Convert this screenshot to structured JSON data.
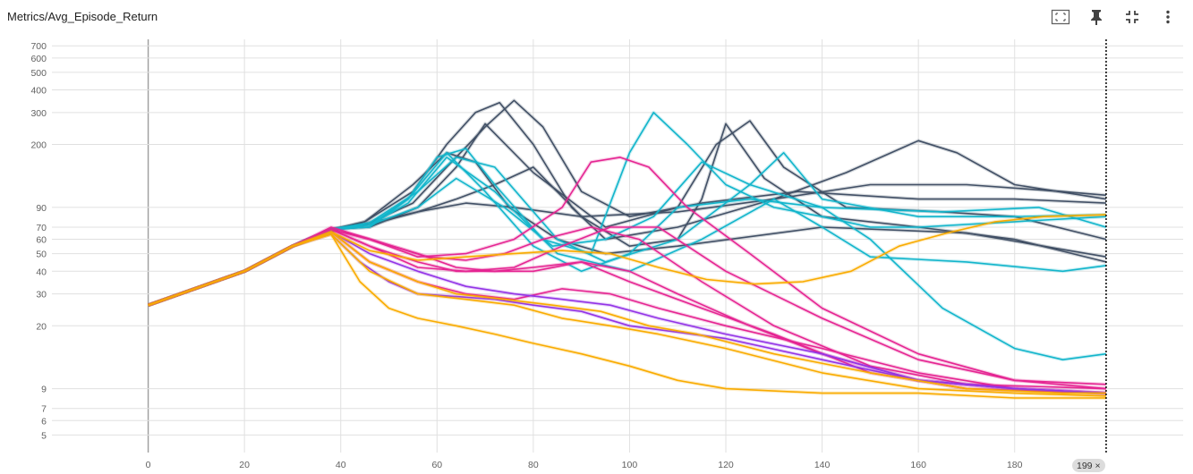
{
  "title": "Metrics/Avg_Episode_Return",
  "toolbar": {
    "icons": [
      "fit-domain-icon",
      "pin-icon",
      "collapse-icon",
      "more-vert-icon"
    ]
  },
  "cursor": {
    "step_label": "199",
    "close_glyph": "×"
  },
  "chart_data": {
    "type": "line",
    "title": "Metrics/Avg_Episode_Return",
    "xlabel": "",
    "ylabel": "",
    "xlim": [
      -20,
      215
    ],
    "ylim": [
      4,
      760
    ],
    "yscale": "log",
    "grid": true,
    "x_ticks": [
      0,
      20,
      40,
      60,
      80,
      100,
      120,
      140,
      160,
      180
    ],
    "y_ticks": [
      5,
      6,
      7,
      9,
      20,
      30,
      40,
      50,
      60,
      70,
      90,
      200,
      300,
      400,
      500,
      600,
      700
    ],
    "y_tick_labels": [
      "5",
      "6",
      "7",
      "9",
      "20",
      "30",
      "40",
      "50",
      "60",
      "70",
      "90",
      "200",
      "300",
      "400",
      "500",
      "600",
      "700"
    ],
    "cursor_x": 199,
    "colors": {
      "slate": "#425066",
      "cyan": "#12b5cb",
      "magenta": "#e52592",
      "purple": "#9334e6",
      "orange": "#f9ab00"
    },
    "series": [
      {
        "color": "#425066",
        "x": [
          0,
          20,
          30,
          38,
          45,
          55,
          62,
          68,
          73,
          80,
          88,
          95,
          110,
          130,
          150,
          170,
          190,
          199
        ],
        "y": [
          26,
          40,
          55,
          68,
          75,
          110,
          200,
          300,
          340,
          200,
          90,
          60,
          70,
          100,
          120,
          120,
          110,
          105
        ]
      },
      {
        "color": "#425066",
        "x": [
          0,
          20,
          30,
          38,
          45,
          55,
          62,
          70,
          76,
          82,
          90,
          100,
          115,
          135,
          160,
          180,
          199
        ],
        "y": [
          26,
          40,
          55,
          68,
          72,
          95,
          150,
          250,
          350,
          250,
          110,
          80,
          95,
          110,
          100,
          100,
          95
        ]
      },
      {
        "color": "#425066",
        "x": [
          0,
          20,
          30,
          38,
          45,
          55,
          62,
          68,
          75,
          85,
          95,
          110,
          140,
          170,
          199
        ],
        "y": [
          26,
          40,
          55,
          66,
          75,
          120,
          180,
          160,
          90,
          60,
          50,
          55,
          70,
          65,
          48
        ]
      },
      {
        "color": "#425066",
        "x": [
          0,
          20,
          30,
          38,
          46,
          56,
          64,
          72,
          80,
          90,
          100,
          110,
          115,
          120,
          128,
          140,
          160,
          180,
          199
        ],
        "y": [
          26,
          40,
          55,
          68,
          72,
          85,
          100,
          120,
          150,
          80,
          55,
          60,
          100,
          260,
          130,
          80,
          70,
          60,
          45
        ]
      },
      {
        "color": "#425066",
        "x": [
          0,
          20,
          30,
          38,
          46,
          56,
          64,
          70,
          80,
          95,
          110,
          118,
          125,
          132,
          145,
          165,
          180,
          199
        ],
        "y": [
          26,
          40,
          55,
          68,
          70,
          90,
          150,
          260,
          140,
          70,
          90,
          200,
          270,
          150,
          90,
          85,
          80,
          60
        ]
      },
      {
        "color": "#425066",
        "x": [
          0,
          20,
          30,
          38,
          46,
          56,
          66,
          76,
          90,
          110,
          130,
          145,
          160,
          168,
          180,
          199
        ],
        "y": [
          26,
          40,
          55,
          68,
          74,
          85,
          95,
          90,
          80,
          85,
          100,
          140,
          210,
          180,
          120,
          100
        ]
      },
      {
        "color": "#12b5cb",
        "x": [
          0,
          20,
          30,
          38,
          46,
          54,
          60,
          66,
          72,
          82,
          92,
          100,
          105,
          112,
          120,
          130,
          140,
          150,
          160,
          180,
          199
        ],
        "y": [
          26,
          40,
          55,
          68,
          70,
          100,
          170,
          190,
          120,
          60,
          50,
          180,
          300,
          200,
          120,
          90,
          80,
          70,
          70,
          75,
          80
        ]
      },
      {
        "color": "#12b5cb",
        "x": [
          0,
          20,
          30,
          38,
          46,
          54,
          62,
          70,
          80,
          90,
          100,
          110,
          125,
          140,
          150,
          165,
          180,
          190,
          199
        ],
        "y": [
          26,
          40,
          55,
          68,
          72,
          100,
          180,
          110,
          55,
          40,
          50,
          90,
          100,
          90,
          60,
          25,
          15,
          13,
          14
        ]
      },
      {
        "color": "#12b5cb",
        "x": [
          0,
          20,
          30,
          38,
          46,
          54,
          62,
          72,
          85,
          100,
          115,
          130,
          140,
          150,
          170,
          190,
          199
        ],
        "y": [
          26,
          40,
          55,
          68,
          72,
          95,
          170,
          110,
          50,
          40,
          60,
          100,
          70,
          48,
          45,
          40,
          43
        ]
      },
      {
        "color": "#12b5cb",
        "x": [
          0,
          20,
          30,
          38,
          46,
          56,
          64,
          72,
          85,
          95,
          110,
          125,
          132,
          140,
          160,
          180,
          199
        ],
        "y": [
          26,
          40,
          55,
          68,
          74,
          110,
          170,
          150,
          60,
          45,
          60,
          120,
          180,
          100,
          80,
          80,
          82
        ]
      },
      {
        "color": "#12b5cb",
        "x": [
          0,
          20,
          30,
          38,
          46,
          56,
          64,
          74,
          84,
          95,
          105,
          115,
          125,
          140,
          165,
          185,
          199
        ],
        "y": [
          26,
          40,
          55,
          68,
          72,
          90,
          130,
          90,
          55,
          60,
          80,
          160,
          120,
          90,
          85,
          90,
          70
        ]
      },
      {
        "color": "#e52592",
        "x": [
          0,
          20,
          30,
          38,
          46,
          56,
          66,
          76,
          86,
          92,
          98,
          104,
          112,
          125,
          140,
          160,
          180,
          199
        ],
        "y": [
          26,
          40,
          55,
          68,
          60,
          48,
          50,
          60,
          90,
          160,
          170,
          150,
          90,
          50,
          25,
          14,
          10,
          9
        ]
      },
      {
        "color": "#e52592",
        "x": [
          0,
          20,
          30,
          38,
          46,
          56,
          66,
          76,
          86,
          96,
          106,
          120,
          140,
          160,
          180,
          199
        ],
        "y": [
          26,
          40,
          55,
          68,
          55,
          42,
          40,
          42,
          55,
          70,
          70,
          40,
          22,
          13,
          10,
          9.5
        ]
      },
      {
        "color": "#e52592",
        "x": [
          0,
          20,
          30,
          38,
          46,
          56,
          64,
          72,
          80,
          90,
          100,
          110,
          125,
          140,
          160,
          180,
          199
        ],
        "y": [
          26,
          40,
          55,
          68,
          60,
          50,
          42,
          40,
          40,
          45,
          40,
          30,
          20,
          14,
          10,
          9,
          8.5
        ]
      },
      {
        "color": "#e52592",
        "x": [
          0,
          20,
          30,
          38,
          46,
          56,
          64,
          72,
          80,
          90,
          100,
          115,
          130,
          150,
          170,
          199
        ],
        "y": [
          26,
          40,
          55,
          68,
          55,
          45,
          40,
          40,
          42,
          45,
          35,
          25,
          18,
          11,
          9,
          8.5
        ]
      },
      {
        "color": "#e52592",
        "x": [
          0,
          20,
          30,
          38,
          48,
          58,
          66,
          74,
          82,
          92,
          102,
          115,
          130,
          150,
          170,
          199
        ],
        "y": [
          26,
          40,
          55,
          70,
          58,
          48,
          46,
          50,
          60,
          70,
          60,
          35,
          20,
          12,
          9.5,
          9
        ]
      },
      {
        "color": "#e52592",
        "x": [
          0,
          20,
          30,
          38,
          46,
          56,
          66,
          76,
          86,
          96,
          106,
          120,
          140,
          160,
          180,
          199
        ],
        "y": [
          26,
          40,
          55,
          66,
          45,
          35,
          30,
          28,
          32,
          30,
          25,
          20,
          15,
          11,
          9,
          8.5
        ]
      },
      {
        "color": "#9334e6",
        "x": [
          0,
          20,
          30,
          38,
          44,
          50,
          56,
          64,
          72,
          80,
          90,
          100,
          120,
          140,
          160,
          180,
          199
        ],
        "y": [
          26,
          40,
          55,
          64,
          45,
          35,
          30,
          29,
          28,
          26,
          24,
          20,
          17,
          13,
          10,
          9,
          8.5
        ]
      },
      {
        "color": "#9334e6",
        "x": [
          0,
          20,
          30,
          38,
          46,
          56,
          66,
          76,
          86,
          96,
          106,
          120,
          140,
          160,
          180,
          199
        ],
        "y": [
          26,
          40,
          55,
          66,
          50,
          40,
          33,
          30,
          28,
          26,
          22,
          18,
          14,
          10,
          9,
          8.5
        ]
      },
      {
        "color": "#f9ab00",
        "x": [
          0,
          20,
          30,
          38,
          44,
          50,
          56,
          64,
          72,
          80,
          90,
          100,
          110,
          120,
          140,
          160,
          180,
          199
        ],
        "y": [
          26,
          40,
          55,
          64,
          35,
          25,
          22,
          20,
          18,
          16,
          14,
          12,
          10,
          9,
          8.5,
          8.5,
          8,
          8
        ]
      },
      {
        "color": "#f9ab00",
        "x": [
          0,
          20,
          30,
          38,
          46,
          56,
          64,
          74,
          84,
          94,
          104,
          114,
          130,
          150,
          170,
          190,
          199
        ],
        "y": [
          26,
          40,
          55,
          66,
          45,
          35,
          30,
          28,
          26,
          24,
          20,
          18,
          14,
          11,
          9,
          8.5,
          8.5
        ]
      },
      {
        "color": "#f9ab00",
        "x": [
          0,
          20,
          30,
          38,
          46,
          56,
          66,
          76,
          86,
          96,
          106,
          116,
          126,
          136,
          146,
          156,
          166,
          176,
          186,
          199
        ],
        "y": [
          26,
          40,
          55,
          66,
          52,
          46,
          48,
          50,
          52,
          50,
          42,
          36,
          34,
          35,
          40,
          55,
          65,
          75,
          80,
          82
        ]
      },
      {
        "color": "#f9ab00",
        "x": [
          0,
          20,
          30,
          38,
          46,
          56,
          66,
          76,
          86,
          96,
          106,
          120,
          140,
          160,
          180,
          199
        ],
        "y": [
          26,
          40,
          55,
          64,
          40,
          30,
          28,
          26,
          22,
          20,
          18,
          15,
          11,
          9,
          8.5,
          8.2
        ]
      }
    ]
  }
}
